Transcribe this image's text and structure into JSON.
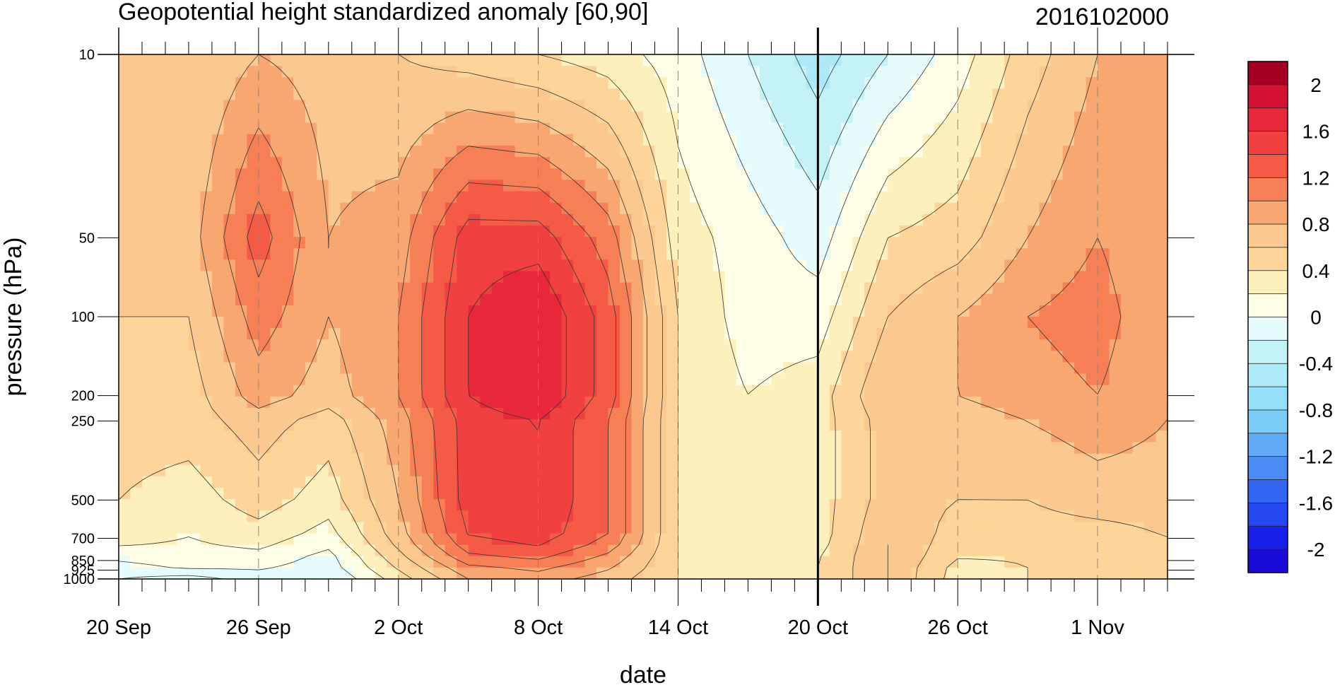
{
  "chart_data": {
    "type": "heatmap",
    "title": "Geopotential height standardized anomaly [60,90]",
    "subtitle": "2016102000",
    "xlabel": "date",
    "ylabel": "pressure (hPa)",
    "x_ticks": [
      "20 Sep",
      "26 Sep",
      "2 Oct",
      "8 Oct",
      "14 Oct",
      "20 Oct",
      "26 Oct",
      "1 Nov"
    ],
    "x_tick_days": [
      0,
      6,
      12,
      18,
      24,
      30,
      36,
      42
    ],
    "xlim_days": [
      0,
      45
    ],
    "vertical_line_day": 30,
    "y_ticks": [
      10,
      50,
      100,
      200,
      250,
      500,
      700,
      850,
      925,
      1000
    ],
    "y_scale": "log",
    "ylim": [
      1000,
      10
    ],
    "colorbar": {
      "labels": [
        "2",
        "1.6",
        "1.2",
        "0.8",
        "0.4",
        "0",
        "-0.4",
        "-0.8",
        "-1.2",
        "-1.6",
        "-2"
      ],
      "levels": [
        -2.2,
        -2.0,
        -1.8,
        -1.6,
        -1.4,
        -1.2,
        -1.0,
        -0.8,
        -0.6,
        -0.4,
        -0.2,
        0.0,
        0.2,
        0.4,
        0.6,
        0.8,
        1.0,
        1.2,
        1.4,
        1.6,
        1.8,
        2.0,
        2.2
      ],
      "colors": [
        "#1a0cd6",
        "#1920ec",
        "#2548f2",
        "#3366f2",
        "#4c8bf5",
        "#62aaf8",
        "#7ccdf8",
        "#95e0f8",
        "#ade9f6",
        "#c4f3f7",
        "#e6fcfc",
        "#fefde6",
        "#fdf0bc",
        "#fdd499",
        "#fbc88f",
        "#f9a770",
        "#f77f56",
        "#f45a46",
        "#f04040",
        "#e8283a",
        "#d41033",
        "#a50021"
      ]
    },
    "pressure_levels": [
      10,
      50,
      100,
      200,
      250,
      500,
      700,
      850,
      925,
      1000
    ],
    "time_days": [
      0,
      3,
      6,
      9,
      12,
      15,
      18,
      21,
      24,
      27,
      30,
      33,
      36,
      39,
      42,
      45
    ],
    "values": [
      [
        0.8,
        0.6,
        0.8,
        0.7,
        0.6,
        0.5,
        0.4,
        0.3,
        0.1,
        -0.2,
        -0.5,
        -0.2,
        0.1,
        0.5,
        0.8,
        0.9
      ],
      [
        0.6,
        0.7,
        1.3,
        0.8,
        0.9,
        1.5,
        1.5,
        1.1,
        0.3,
        0.1,
        -0.1,
        0.4,
        0.5,
        0.8,
        1.0,
        0.8
      ],
      [
        0.6,
        0.6,
        1.1,
        0.8,
        1.0,
        1.6,
        1.8,
        1.3,
        0.4,
        0.1,
        0.1,
        0.6,
        0.8,
        1.0,
        1.1,
        0.8
      ],
      [
        0.5,
        0.5,
        0.9,
        0.7,
        1.0,
        1.6,
        1.8,
        1.3,
        0.4,
        0.2,
        0.3,
        0.8,
        0.8,
        0.9,
        1.0,
        0.8
      ],
      [
        0.5,
        0.5,
        0.7,
        0.5,
        0.9,
        1.5,
        1.6,
        1.2,
        0.4,
        0.3,
        0.3,
        0.7,
        0.7,
        0.8,
        0.9,
        0.8
      ],
      [
        0.4,
        0.3,
        0.5,
        0.3,
        0.8,
        1.5,
        1.6,
        1.2,
        0.4,
        0.3,
        0.3,
        0.7,
        0.6,
        0.6,
        0.7,
        0.7
      ],
      [
        0.3,
        0.2,
        0.3,
        0.1,
        0.7,
        1.4,
        1.5,
        1.2,
        0.4,
        0.3,
        0.3,
        0.8,
        0.5,
        0.5,
        0.5,
        0.6
      ],
      [
        0.0,
        0.1,
        0.1,
        -0.1,
        0.5,
        1.1,
        1.2,
        0.9,
        0.4,
        0.3,
        0.4,
        0.8,
        0.4,
        0.4,
        0.5,
        0.5
      ],
      [
        -0.1,
        0.0,
        0.0,
        -0.1,
        0.4,
        0.9,
        1.0,
        0.8,
        0.4,
        0.3,
        0.4,
        0.8,
        0.3,
        0.4,
        0.5,
        0.5
      ],
      [
        -0.2,
        -0.3,
        -0.1,
        -0.2,
        0.3,
        0.8,
        0.9,
        0.7,
        0.4,
        0.3,
        0.4,
        0.8,
        0.3,
        0.4,
        0.5,
        0.5
      ]
    ]
  }
}
